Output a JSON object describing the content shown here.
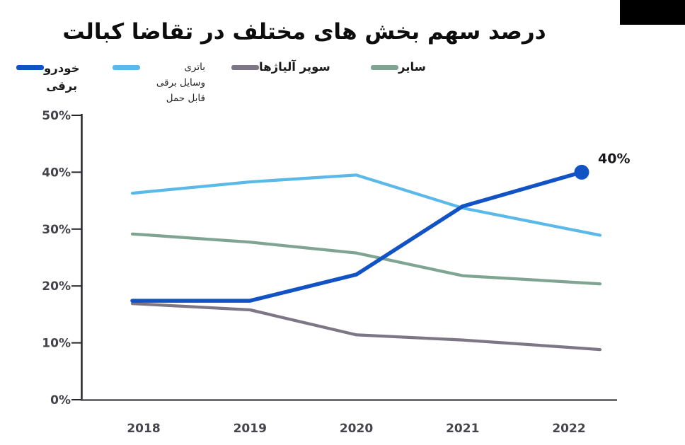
{
  "page": {
    "title": "درصد سهم بخش های مختلف در تقاضا کبالت"
  },
  "legend": {
    "items": [
      {
        "label": "خودرو برقی",
        "lines": [
          "خودرو",
          "برقی"
        ],
        "color": "#1152C4"
      },
      {
        "label": "باتری وسایل برقی قابل حمل",
        "lines": [
          "باتری",
          "وسایل برقی",
          "قابل حمل"
        ],
        "color": "#5AB9E8"
      },
      {
        "label": "سوپر آلیاژها",
        "lines": [
          "سوپر آلیاژها"
        ],
        "color": "#7D7785"
      },
      {
        "label": "سایر",
        "lines": [
          "سایر"
        ],
        "color": "#7FA492"
      }
    ]
  },
  "chart_data": {
    "type": "line",
    "title": "درصد سهم بخش های مختلف در تقاضا کبالت",
    "x": [
      "2018",
      "2019",
      "2020",
      "2021",
      "2022"
    ],
    "xlabel": "",
    "ylabel": "",
    "ylim": [
      0,
      50
    ],
    "yticks": [
      0,
      10,
      20,
      30,
      40,
      50
    ],
    "ytick_labels": [
      "0%",
      "10%",
      "20%",
      "30%",
      "40%",
      "50%"
    ],
    "grid": false,
    "legend_position": "top",
    "series": [
      {
        "name": "خودرو برقی",
        "key": "electric-vehicle",
        "color": "#1152C4",
        "values": [
          17.4,
          17.4,
          22,
          34,
          40
        ],
        "end_marker": true
      },
      {
        "name": "باتری وسایل برقی قابل حمل",
        "key": "portable-devices-battery",
        "color": "#5AB9E8",
        "values": [
          36.5,
          38.3,
          39.5,
          33.7,
          30
        ]
      },
      {
        "name": "سایر",
        "key": "other",
        "color": "#7FA492",
        "values": [
          29,
          27.7,
          25.8,
          21.8,
          20.7
        ]
      },
      {
        "name": "سوپر آلیاژها",
        "key": "superalloys",
        "color": "#7D7785",
        "values": [
          16.8,
          15.8,
          11.4,
          10.5,
          9.2
        ]
      }
    ],
    "annotation": {
      "text": "40%",
      "series": "خودرو برقی",
      "x": "2022",
      "value": 40
    }
  }
}
